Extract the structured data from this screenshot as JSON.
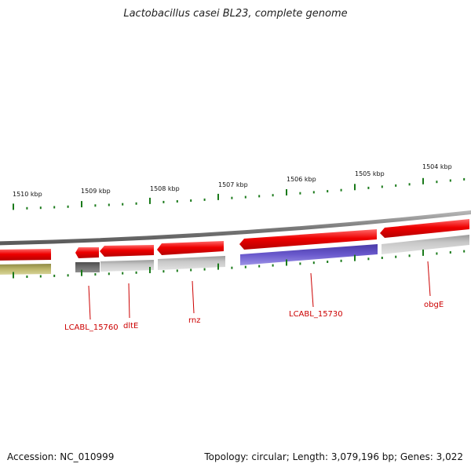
{
  "title": "Lactobacillus casei BL23, complete genome",
  "accession": "Accession: NC_010999",
  "topology": "Topology: circular; Length: 3,079,196 bp; Genes: 3,022",
  "kbp_labels": [
    "1510 kbp",
    "1509 kbp",
    "1508 kbp",
    "1507 kbp",
    "1506 kbp",
    "1505 kbp",
    "1504 kbp"
  ],
  "gene_labels": [
    "LCABL_15760",
    "dltE",
    "rnz",
    "LCABL_15730",
    "obgE"
  ],
  "colors": {
    "cds": "#ee0000",
    "backbone": "#8a8a8a",
    "tick": "#1a7a1a",
    "gene_label": "#cc0000",
    "olive": "#bdb76b",
    "gray_feature": "#bbbbbb",
    "dark_feature": "#666666",
    "blue_feature": "#6a5acd"
  }
}
